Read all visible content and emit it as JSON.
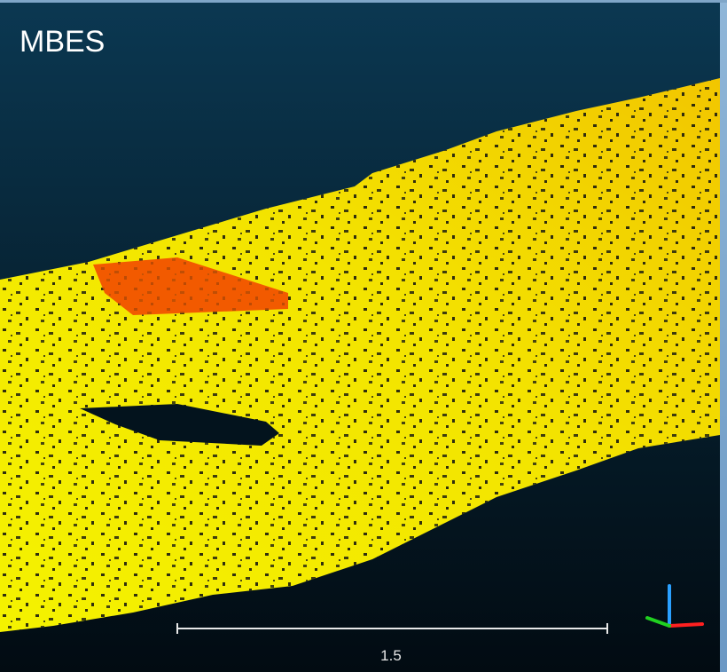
{
  "viewer": {
    "title": "MBES",
    "scale_bar": {
      "label": "1.5"
    }
  }
}
